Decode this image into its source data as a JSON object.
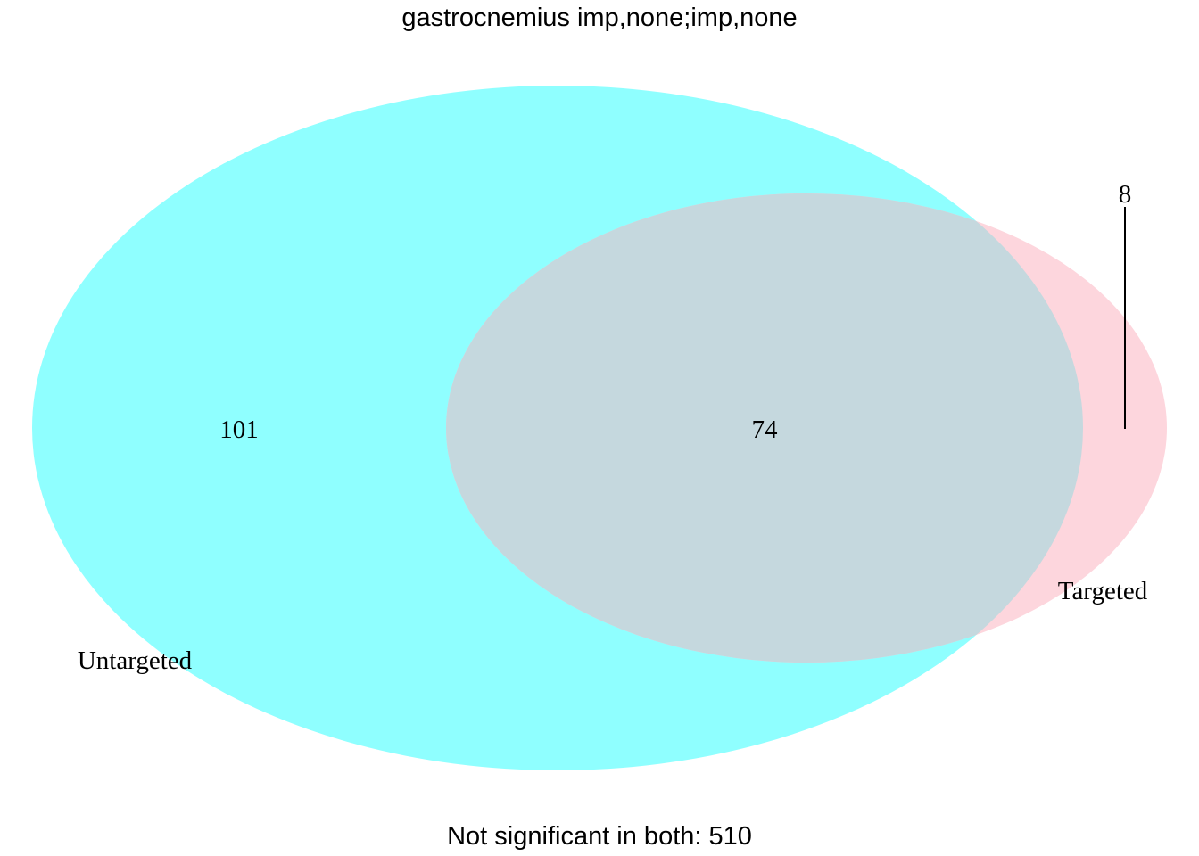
{
  "title": "gastrocnemius imp,none;imp,none",
  "footer": "Not significant in both: 510",
  "sets": [
    {
      "name": "Untargeted",
      "color": "#00FFFF",
      "opacity": 0.44
    },
    {
      "name": "Targeted",
      "color": "#FFC0CB",
      "opacity": 0.66
    }
  ],
  "regions": {
    "untargeted_only": "101",
    "intersection": "74",
    "targeted_only": "8"
  },
  "intersection_color": "#C5D8DE"
}
